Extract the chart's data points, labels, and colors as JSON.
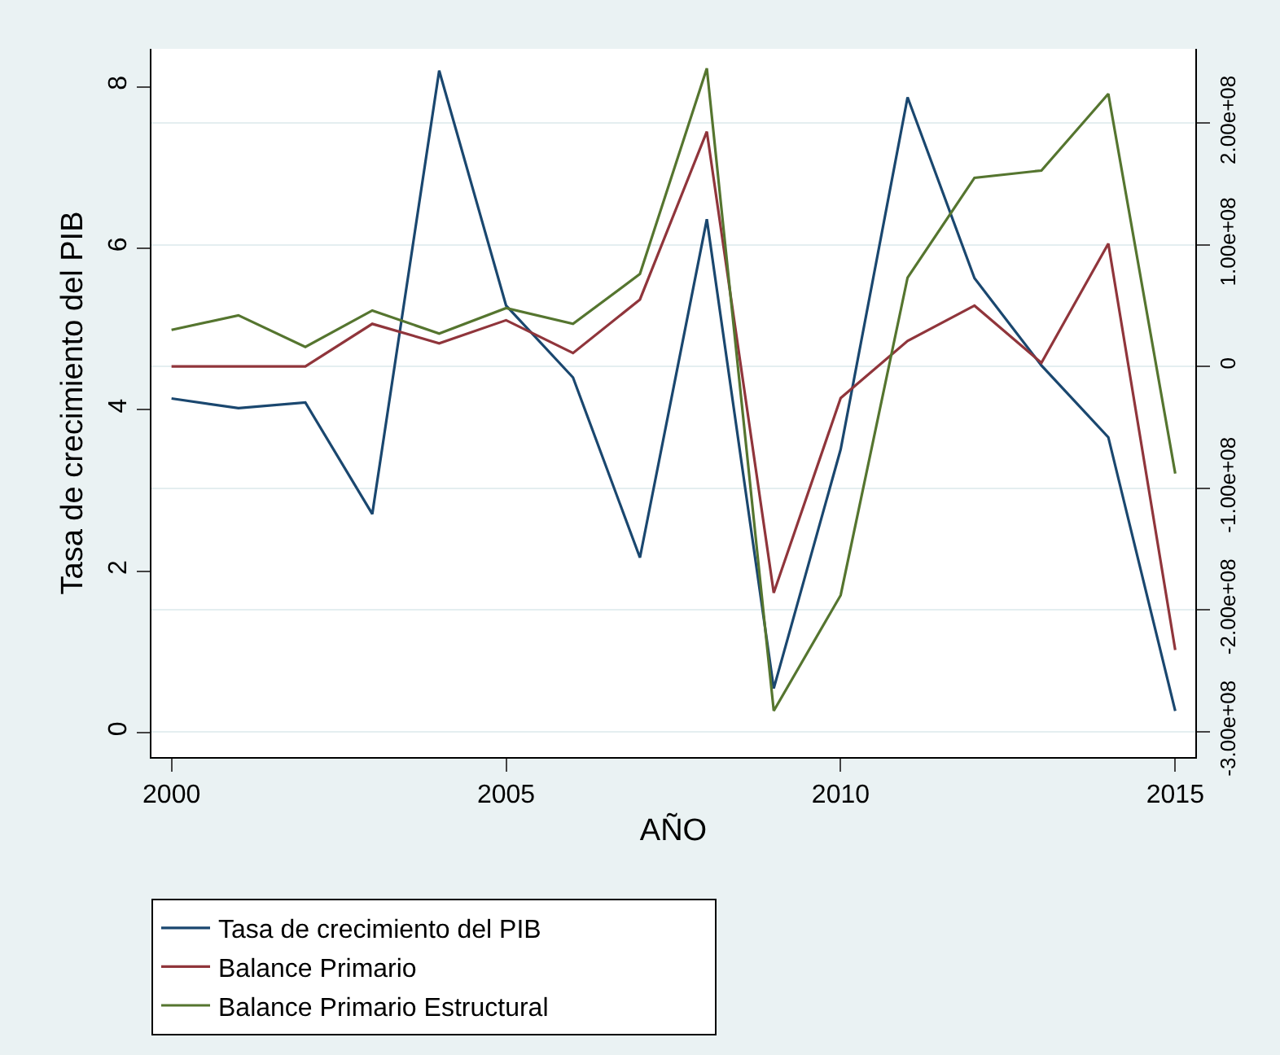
{
  "chart_data": {
    "type": "line",
    "xlabel": "AÑO",
    "ylabel": "Tasa de crecimiento del PIB",
    "x": [
      2000,
      2001,
      2002,
      2003,
      2004,
      2005,
      2006,
      2007,
      2008,
      2009,
      2010,
      2011,
      2012,
      2013,
      2014,
      2015
    ],
    "series": [
      {
        "name": "Tasa de crecimiento del PIB",
        "color": "#1a476f",
        "values": [
          4.14,
          4.02,
          4.09,
          2.71,
          8.2,
          5.29,
          4.4,
          2.17,
          6.36,
          0.55,
          3.51,
          7.87,
          5.63,
          4.55,
          3.66,
          0.27
        ]
      },
      {
        "name": "Balance Primario",
        "color": "#90353b",
        "axis": "y2",
        "values": [
          0,
          0,
          0,
          35000000,
          19000000,
          38000000,
          11000000,
          55000000,
          193000000,
          -186000000,
          -26000000,
          21000000,
          50000000,
          3000000,
          101000000,
          -233000000
        ]
      },
      {
        "name": "Balance Primario Estructural",
        "color": "#55752f",
        "axis": "y2",
        "values": [
          30000000,
          42000000,
          16000000,
          46000000,
          27000000,
          48000000,
          35000000,
          76000000,
          245000000,
          -283000000,
          -188000000,
          73000000,
          155000000,
          161000000,
          224000000,
          -88000000
        ]
      }
    ],
    "xlim": [
      1999.7,
      2015.3
    ],
    "xticks": [
      2000,
      2005,
      2010,
      2015
    ],
    "ylim": [
      -0.3,
      8.47
    ],
    "yticks": [
      0,
      2,
      4,
      6,
      8
    ],
    "y2lim": [
      -321000000,
      261000000
    ],
    "y2ticks": [
      {
        "value": -300000000,
        "label": "-3.00e+08"
      },
      {
        "value": -200000000,
        "label": "-2.00e+08"
      },
      {
        "value": -100000000,
        "label": "-1.00e+08"
      },
      0,
      {
        "value": 100000000,
        "label": "1.00e+08"
      },
      {
        "value": 200000000,
        "label": "2.00e+08"
      }
    ],
    "grid": "y2",
    "legend": "bottom",
    "marker": "none",
    "line_style": "solid"
  }
}
